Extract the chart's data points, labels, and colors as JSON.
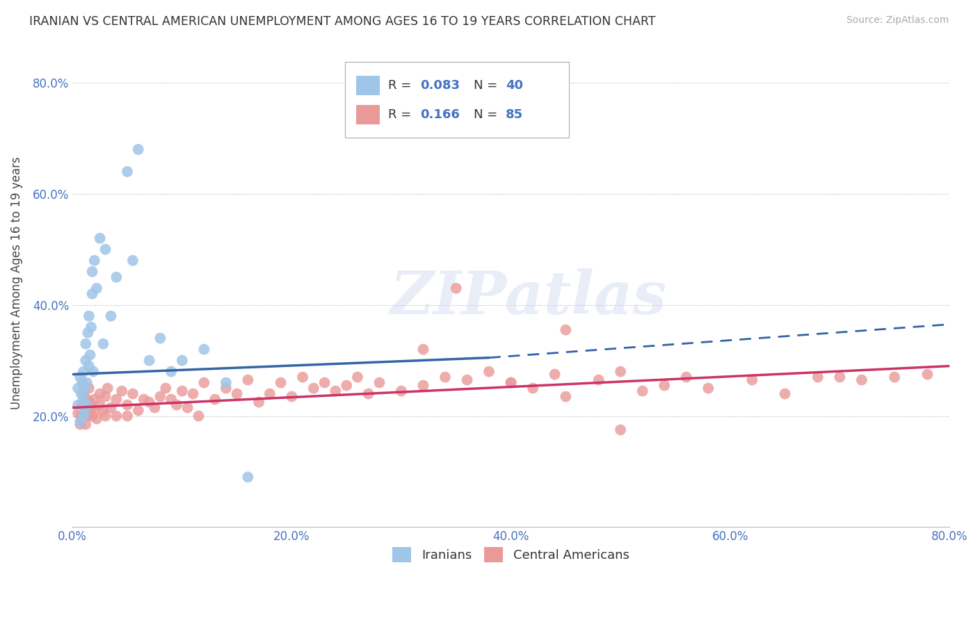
{
  "title": "IRANIAN VS CENTRAL AMERICAN UNEMPLOYMENT AMONG AGES 16 TO 19 YEARS CORRELATION CHART",
  "source": "Source: ZipAtlas.com",
  "ylabel": "Unemployment Among Ages 16 to 19 years",
  "xlim": [
    0.0,
    0.8
  ],
  "ylim": [
    0.0,
    0.88
  ],
  "xticklabels": [
    "0.0%",
    "20.0%",
    "40.0%",
    "60.0%",
    "80.0%"
  ],
  "xticks": [
    0.0,
    0.2,
    0.4,
    0.6,
    0.8
  ],
  "yticks": [
    0.2,
    0.4,
    0.6,
    0.8
  ],
  "yticklabels": [
    "20.0%",
    "40.0%",
    "60.0%",
    "80.0%"
  ],
  "blue_color": "#9fc5e8",
  "pink_color": "#ea9999",
  "blue_line_color": "#3465a4",
  "pink_line_color": "#cc3366",
  "legend_r_color": "#4472c4",
  "watermark_text": "ZIPatlas",
  "background_color": "#ffffff",
  "grid_color": "#b0b0b0",
  "tick_color": "#4472c4",
  "iran_line_start_x": 0.0,
  "iran_line_start_y": 0.275,
  "iran_line_solid_end_x": 0.38,
  "iran_line_solid_end_y": 0.305,
  "iran_line_dash_end_x": 0.8,
  "iran_line_dash_end_y": 0.365,
  "ca_line_start_x": 0.0,
  "ca_line_start_y": 0.215,
  "ca_line_end_x": 0.8,
  "ca_line_end_y": 0.29,
  "iranian_x": [
    0.005,
    0.005,
    0.007,
    0.007,
    0.008,
    0.009,
    0.01,
    0.01,
    0.01,
    0.011,
    0.011,
    0.012,
    0.012,
    0.013,
    0.013,
    0.014,
    0.015,
    0.015,
    0.016,
    0.017,
    0.018,
    0.018,
    0.019,
    0.02,
    0.022,
    0.025,
    0.028,
    0.03,
    0.035,
    0.04,
    0.05,
    0.055,
    0.06,
    0.07,
    0.08,
    0.09,
    0.1,
    0.12,
    0.14,
    0.16
  ],
  "iranian_y": [
    0.22,
    0.25,
    0.19,
    0.27,
    0.24,
    0.26,
    0.2,
    0.23,
    0.28,
    0.21,
    0.25,
    0.3,
    0.33,
    0.22,
    0.26,
    0.35,
    0.29,
    0.38,
    0.31,
    0.36,
    0.42,
    0.46,
    0.28,
    0.48,
    0.43,
    0.52,
    0.33,
    0.5,
    0.38,
    0.45,
    0.64,
    0.48,
    0.68,
    0.3,
    0.34,
    0.28,
    0.3,
    0.32,
    0.26,
    0.09
  ],
  "central_american_x": [
    0.005,
    0.007,
    0.008,
    0.009,
    0.01,
    0.01,
    0.011,
    0.012,
    0.013,
    0.014,
    0.015,
    0.015,
    0.016,
    0.017,
    0.018,
    0.02,
    0.02,
    0.022,
    0.025,
    0.025,
    0.028,
    0.03,
    0.03,
    0.032,
    0.035,
    0.04,
    0.04,
    0.045,
    0.05,
    0.05,
    0.055,
    0.06,
    0.065,
    0.07,
    0.075,
    0.08,
    0.085,
    0.09,
    0.095,
    0.1,
    0.105,
    0.11,
    0.115,
    0.12,
    0.13,
    0.14,
    0.15,
    0.16,
    0.17,
    0.18,
    0.19,
    0.2,
    0.21,
    0.22,
    0.23,
    0.24,
    0.25,
    0.26,
    0.27,
    0.28,
    0.3,
    0.32,
    0.34,
    0.35,
    0.36,
    0.38,
    0.4,
    0.42,
    0.44,
    0.45,
    0.48,
    0.5,
    0.52,
    0.54,
    0.56,
    0.58,
    0.62,
    0.65,
    0.68,
    0.7,
    0.72,
    0.75,
    0.78,
    0.4,
    0.45,
    0.5,
    0.32
  ],
  "central_american_y": [
    0.205,
    0.185,
    0.2,
    0.22,
    0.24,
    0.22,
    0.2,
    0.185,
    0.23,
    0.2,
    0.21,
    0.25,
    0.225,
    0.215,
    0.2,
    0.23,
    0.21,
    0.195,
    0.22,
    0.24,
    0.21,
    0.235,
    0.2,
    0.25,
    0.215,
    0.2,
    0.23,
    0.245,
    0.2,
    0.22,
    0.24,
    0.21,
    0.23,
    0.225,
    0.215,
    0.235,
    0.25,
    0.23,
    0.22,
    0.245,
    0.215,
    0.24,
    0.2,
    0.26,
    0.23,
    0.25,
    0.24,
    0.265,
    0.225,
    0.24,
    0.26,
    0.235,
    0.27,
    0.25,
    0.26,
    0.245,
    0.255,
    0.27,
    0.24,
    0.26,
    0.245,
    0.255,
    0.27,
    0.43,
    0.265,
    0.28,
    0.26,
    0.25,
    0.275,
    0.235,
    0.265,
    0.28,
    0.245,
    0.255,
    0.27,
    0.25,
    0.265,
    0.24,
    0.27,
    0.27,
    0.265,
    0.27,
    0.275,
    0.26,
    0.355,
    0.175,
    0.32
  ]
}
